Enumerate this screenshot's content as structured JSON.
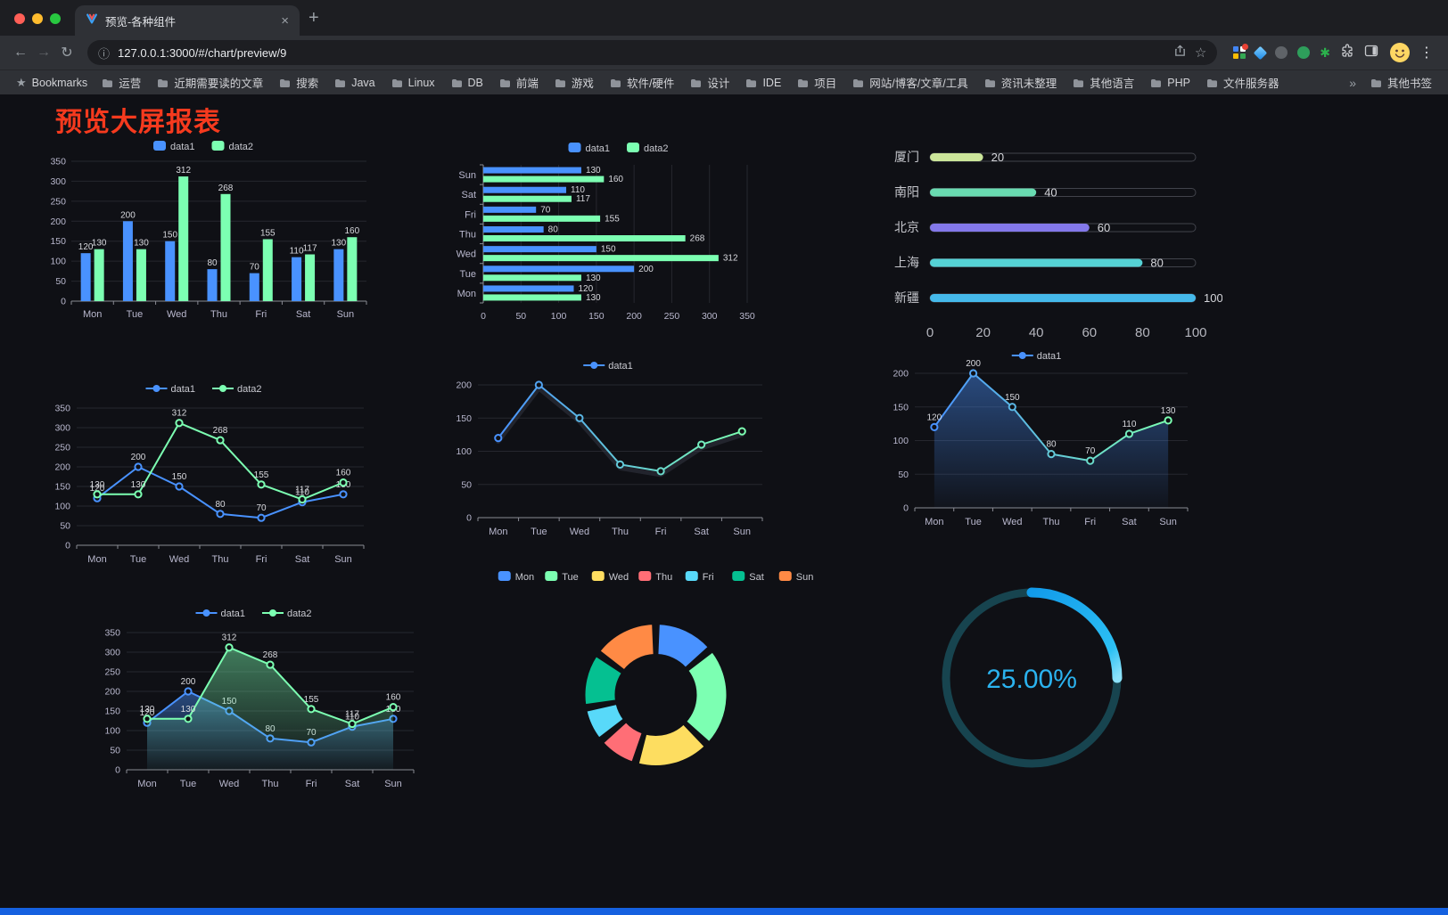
{
  "browser": {
    "tab_title": "预览-各种组件",
    "url": "127.0.0.1:3000/#/chart/preview/9",
    "bookmarks_label": "Bookmarks",
    "bookmarks": [
      "运营",
      "近期需要读的文章",
      "搜索",
      "Java",
      "Linux",
      "DB",
      "前端",
      "游戏",
      "软件/硬件",
      "设计",
      "IDE",
      "项目",
      "网站/博客/文章/工具",
      "资讯未整理",
      "其他语言",
      "PHP",
      "文件服务器"
    ],
    "other_bookmarks": "其他书签",
    "icons": {
      "close": "×",
      "new_tab": "+",
      "back": "←",
      "forward": "→",
      "reload": "↻",
      "info": "ⓘ",
      "bookmark_star": "☆",
      "menu": "⋮",
      "overflow": "»",
      "bookmarks_star": "★",
      "ext_star": "✱"
    }
  },
  "page": {
    "title": "预览大屏报表",
    "title_color": "#f63a1e",
    "background": "#0f1015",
    "bottom_bar_color": "#1561e0"
  },
  "chart_data": [
    {
      "id": "c1",
      "type": "bar",
      "legend_position": "top",
      "labels": true,
      "categories": [
        "Mon",
        "Tue",
        "Wed",
        "Thu",
        "Fri",
        "Sat",
        "Sun"
      ],
      "series": [
        {
          "name": "data1",
          "color": "#4992ff",
          "values": [
            120,
            200,
            150,
            80,
            70,
            110,
            130
          ]
        },
        {
          "name": "data2",
          "color": "#7cffb2",
          "values": [
            130,
            130,
            312,
            268,
            155,
            117,
            160
          ]
        }
      ],
      "ylim": [
        0,
        350
      ],
      "yticks": [
        0,
        50,
        100,
        150,
        200,
        250,
        300,
        350
      ]
    },
    {
      "id": "c2",
      "type": "bar",
      "orientation": "horizontal",
      "legend_position": "top",
      "labels": true,
      "categories": [
        "Mon",
        "Tue",
        "Wed",
        "Thu",
        "Fri",
        "Sat",
        "Sun"
      ],
      "series": [
        {
          "name": "data1",
          "color": "#4992ff",
          "values": [
            120,
            200,
            150,
            80,
            70,
            110,
            130
          ]
        },
        {
          "name": "data2",
          "color": "#7cffb2",
          "values": [
            130,
            130,
            312,
            268,
            155,
            117,
            160
          ]
        }
      ],
      "xlim": [
        0,
        350
      ],
      "xticks": [
        0,
        50,
        100,
        150,
        200,
        250,
        300,
        350
      ]
    },
    {
      "id": "c3",
      "type": "bar",
      "orientation": "horizontal-progress",
      "categories": [
        "厦门",
        "南阳",
        "北京",
        "上海",
        "新疆"
      ],
      "values": [
        20,
        40,
        60,
        80,
        100
      ],
      "colors": [
        "#cbe59a",
        "#69dbb1",
        "#8378ea",
        "#55d2d5",
        "#45b9ea"
      ],
      "xlim": [
        0,
        100
      ],
      "xticks": [
        0,
        20,
        40,
        60,
        80,
        100
      ]
    },
    {
      "id": "c4",
      "type": "line",
      "legend_position": "top",
      "labels": true,
      "categories": [
        "Mon",
        "Tue",
        "Wed",
        "Thu",
        "Fri",
        "Sat",
        "Sun"
      ],
      "series": [
        {
          "name": "data1",
          "color": "#4992ff",
          "values": [
            120,
            200,
            150,
            80,
            70,
            110,
            130
          ]
        },
        {
          "name": "data2",
          "color": "#7cffb2",
          "values": [
            130,
            130,
            312,
            268,
            155,
            117,
            160
          ]
        }
      ],
      "ylim": [
        0,
        350
      ],
      "yticks": [
        0,
        50,
        100,
        150,
        200,
        250,
        300,
        350
      ]
    },
    {
      "id": "c5",
      "type": "line",
      "legend_position": "top",
      "shadow": true,
      "categories": [
        "Mon",
        "Tue",
        "Wed",
        "Thu",
        "Fri",
        "Sat",
        "Sun"
      ],
      "series": [
        {
          "name": "data1",
          "gradient": [
            "#4992ff",
            "#7cffb2"
          ],
          "values": [
            120,
            200,
            150,
            80,
            70,
            110,
            130
          ]
        }
      ],
      "ylim": [
        0,
        200
      ],
      "yticks": [
        0,
        50,
        100,
        150,
        200
      ]
    },
    {
      "id": "c6",
      "type": "area",
      "legend_position": "top",
      "labels": true,
      "categories": [
        "Mon",
        "Tue",
        "Wed",
        "Thu",
        "Fri",
        "Sat",
        "Sun"
      ],
      "series": [
        {
          "name": "data1",
          "gradient": [
            "#4992ff",
            "#7cffb2"
          ],
          "area": true,
          "values": [
            120,
            200,
            150,
            80,
            70,
            110,
            130
          ]
        }
      ],
      "ylim": [
        0,
        200
      ],
      "yticks": [
        0,
        50,
        100,
        150,
        200
      ]
    },
    {
      "id": "c7",
      "type": "area",
      "legend_position": "top",
      "labels": true,
      "categories": [
        "Mon",
        "Tue",
        "Wed",
        "Thu",
        "Fri",
        "Sat",
        "Sun"
      ],
      "series": [
        {
          "name": "data1",
          "color": "#4992ff",
          "area": true,
          "values": [
            120,
            200,
            150,
            80,
            70,
            110,
            130
          ]
        },
        {
          "name": "data2",
          "color": "#7cffb2",
          "area": true,
          "values": [
            130,
            130,
            312,
            268,
            155,
            117,
            160
          ]
        }
      ],
      "ylim": [
        0,
        350
      ],
      "yticks": [
        0,
        50,
        100,
        150,
        200,
        250,
        300,
        350
      ]
    },
    {
      "id": "c8",
      "type": "pie",
      "shape": "donut",
      "legend_position": "top",
      "categories": [
        "Mon",
        "Tue",
        "Wed",
        "Thu",
        "Fri",
        "Sat",
        "Sun"
      ],
      "values": [
        120,
        200,
        150,
        80,
        70,
        110,
        130
      ],
      "colors": [
        "#4992ff",
        "#7cffb2",
        "#fddd60",
        "#ff6e76",
        "#58d9f9",
        "#05c091",
        "#ff8a45"
      ]
    },
    {
      "id": "c9",
      "type": "gauge",
      "value": 25,
      "label": "25.00%",
      "color": "#129bea",
      "tail_color": "#8ce2fa",
      "track_color": "#17444f",
      "text_color": "#2bb3ef"
    }
  ]
}
